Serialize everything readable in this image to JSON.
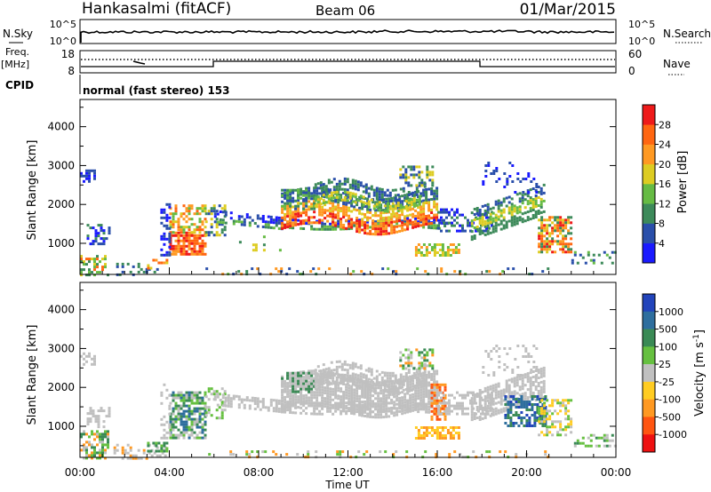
{
  "header": {
    "station": "Hankasalmi (fitACF)",
    "beam": "Beam 06",
    "date": "01/Mar/2015"
  },
  "panels": {
    "nsky": {
      "label": "N.Sky",
      "right_label": "N.Search",
      "left_ticks": [
        "10^5",
        "10^0"
      ],
      "right_ticks": [
        "10^5",
        "10^0"
      ]
    },
    "freq": {
      "label_line1": "Freq.",
      "label_line2": "[MHz]",
      "right_label": "Nave",
      "left_ticks": [
        "18",
        "8"
      ],
      "right_ticks": [
        "60",
        "0"
      ]
    },
    "cpid": {
      "label": "CPID",
      "text": "normal (fast stereo) 153"
    }
  },
  "chart_data": [
    {
      "type": "heatmap",
      "title": "",
      "ylabel": "Slant Range [km]",
      "xlabel": "",
      "y_ticks": [
        "1000",
        "2000",
        "3000",
        "4000"
      ],
      "colorbar": {
        "label": "Power [dB]",
        "tick_labels": [
          "4",
          "8",
          "12",
          "16",
          "20",
          "24",
          "28"
        ],
        "colors": [
          "#1a1aff",
          "#2a4faa",
          "#3d8a5a",
          "#66bb44",
          "#ddcc22",
          "#ff9922",
          "#ff6611",
          "#ee1a1a"
        ]
      }
    },
    {
      "type": "heatmap",
      "title": "",
      "ylabel": "Slant Range [km]",
      "xlabel": "Time UT",
      "y_ticks": [
        "1000",
        "2000",
        "3000",
        "4000"
      ],
      "x_ticks": [
        "00:00",
        "04:00",
        "08:00",
        "12:00",
        "16:00",
        "20:00",
        "00:00"
      ],
      "colorbar": {
        "label": "Velocity [m s",
        "label_sup": "-1",
        "label_end": "]",
        "tick_labels": [
          "1000",
          "500",
          "100",
          "25",
          "-25",
          "-100",
          "-500",
          "-1000"
        ],
        "colors": [
          "#2244bb",
          "#2e6e9e",
          "#3a8a55",
          "#66c040",
          "#c0c0c0",
          "#ffcc22",
          "#ff9922",
          "#ff5511",
          "#ee1111"
        ]
      }
    }
  ]
}
